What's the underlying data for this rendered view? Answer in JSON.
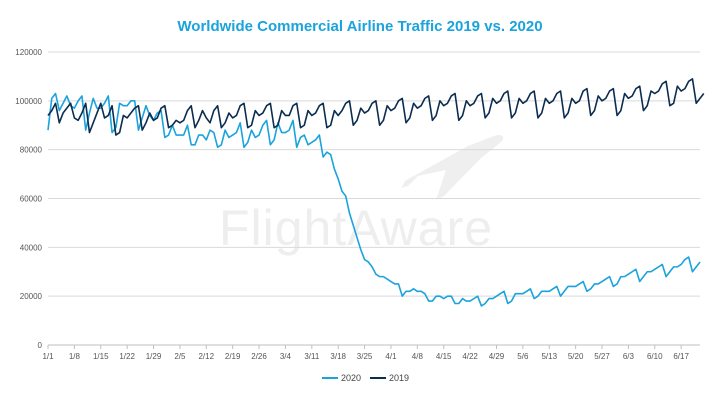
{
  "chart_data": {
    "type": "line",
    "title": "Worldwide Commercial Airline Traffic 2019 vs. 2020",
    "xlabel": "",
    "ylabel": "",
    "ylim": [
      0,
      120000
    ],
    "yticks": [
      0,
      20000,
      40000,
      60000,
      80000,
      100000,
      120000
    ],
    "ytick_labels": [
      "0",
      "20000",
      "40000",
      "60000",
      "80000",
      "100000",
      "120000"
    ],
    "x_day_range": [
      1,
      174
    ],
    "xtick_days": [
      1,
      8,
      15,
      22,
      29,
      36,
      43,
      50,
      57,
      64,
      71,
      78,
      85,
      92,
      99,
      106,
      113,
      120,
      127,
      134,
      141,
      148,
      155,
      162,
      169
    ],
    "xtick_labels": [
      "1/1",
      "1/8",
      "1/15",
      "1/22",
      "1/29",
      "2/5",
      "2/12",
      "2/19",
      "2/26",
      "3/4",
      "3/11",
      "3/18",
      "3/25",
      "4/1",
      "4/8",
      "4/15",
      "4/22",
      "4/29",
      "5/6",
      "5/13",
      "5/20",
      "5/27",
      "6/3",
      "6/10",
      "6/17"
    ],
    "legend_position": "bottom-center",
    "series": [
      {
        "name": "2020",
        "color": "#1aa3dc",
        "values": [
          88000,
          101000,
          103000,
          96000,
          99000,
          102000,
          98000,
          97000,
          100000,
          102000,
          88000,
          95000,
          101000,
          97000,
          97000,
          99000,
          102000,
          87000,
          89000,
          99000,
          98000,
          98000,
          100000,
          100000,
          88000,
          93000,
          98000,
          94000,
          92000,
          95000,
          96000,
          85000,
          86000,
          90000,
          86000,
          86000,
          86000,
          90000,
          82000,
          82000,
          86000,
          86000,
          84000,
          88000,
          87000,
          81000,
          82000,
          88000,
          85000,
          86000,
          87000,
          91000,
          81000,
          83000,
          88000,
          85000,
          86000,
          90000,
          92000,
          82000,
          84000,
          91000,
          87000,
          87000,
          88000,
          92000,
          81000,
          85000,
          86000,
          82000,
          83000,
          84000,
          86000,
          77000,
          79000,
          78000,
          72000,
          68000,
          63000,
          61000,
          54000,
          49000,
          44000,
          39000,
          35000,
          34000,
          32000,
          29000,
          28000,
          28000,
          27000,
          26000,
          25000,
          25000,
          20000,
          22000,
          22000,
          23000,
          22000,
          22000,
          21000,
          18000,
          18000,
          20000,
          20000,
          19000,
          20000,
          20000,
          17000,
          17000,
          19000,
          18000,
          18000,
          19000,
          20000,
          16000,
          17000,
          19000,
          19000,
          20000,
          21000,
          22000,
          17000,
          18000,
          21000,
          21000,
          21000,
          22000,
          23000,
          19000,
          20000,
          22000,
          22000,
          22000,
          23000,
          24000,
          20000,
          22000,
          24000,
          24000,
          24000,
          25000,
          26000,
          22000,
          23000,
          25000,
          25000,
          26000,
          27000,
          28000,
          24000,
          25000,
          28000,
          28000,
          29000,
          30000,
          31000,
          26000,
          28000,
          30000,
          30000,
          31000,
          32000,
          33000,
          28000,
          30000,
          32000,
          32000,
          33000,
          35000,
          36000,
          30000,
          32000,
          34000
        ]
      },
      {
        "name": "2019",
        "color": "#0b2d4f",
        "values": [
          94000,
          96000,
          99000,
          91000,
          95000,
          97000,
          99000,
          93000,
          92000,
          95000,
          99000,
          87000,
          91000,
          95000,
          99000,
          93000,
          94000,
          98000,
          86000,
          87000,
          94000,
          93000,
          95000,
          97000,
          98000,
          88000,
          91000,
          95000,
          92000,
          93000,
          97000,
          98000,
          89000,
          90000,
          92000,
          91000,
          92000,
          96000,
          98000,
          89000,
          92000,
          96000,
          93000,
          91000,
          96000,
          98000,
          89000,
          91000,
          95000,
          93000,
          94000,
          98000,
          99000,
          89000,
          90000,
          96000,
          94000,
          95000,
          98000,
          99000,
          89000,
          90000,
          96000,
          94000,
          94000,
          98000,
          99000,
          89000,
          90000,
          96000,
          94000,
          95000,
          98000,
          99000,
          89000,
          90000,
          96000,
          94000,
          96000,
          99000,
          100000,
          90000,
          92000,
          97000,
          95000,
          96000,
          99000,
          100000,
          90000,
          92000,
          98000,
          96000,
          97000,
          100000,
          101000,
          91000,
          93000,
          99000,
          97000,
          98000,
          101000,
          102000,
          92000,
          94000,
          100000,
          98000,
          99000,
          102000,
          103000,
          92000,
          94000,
          100000,
          98000,
          99000,
          102000,
          103000,
          93000,
          95000,
          101000,
          99000,
          100000,
          103000,
          104000,
          93000,
          95000,
          101000,
          99000,
          100000,
          103000,
          104000,
          93000,
          95000,
          101000,
          99000,
          100000,
          103000,
          104000,
          93000,
          95000,
          101000,
          99000,
          100000,
          104000,
          105000,
          94000,
          96000,
          102000,
          100000,
          101000,
          104000,
          105000,
          94000,
          96000,
          103000,
          101000,
          102000,
          105000,
          106000,
          96000,
          98000,
          104000,
          103000,
          104000,
          107000,
          108000,
          98000,
          99000,
          106000,
          104000,
          105000,
          108000,
          109000,
          99000,
          101000,
          103000
        ]
      }
    ]
  },
  "watermark": {
    "text": "FlightAware"
  }
}
